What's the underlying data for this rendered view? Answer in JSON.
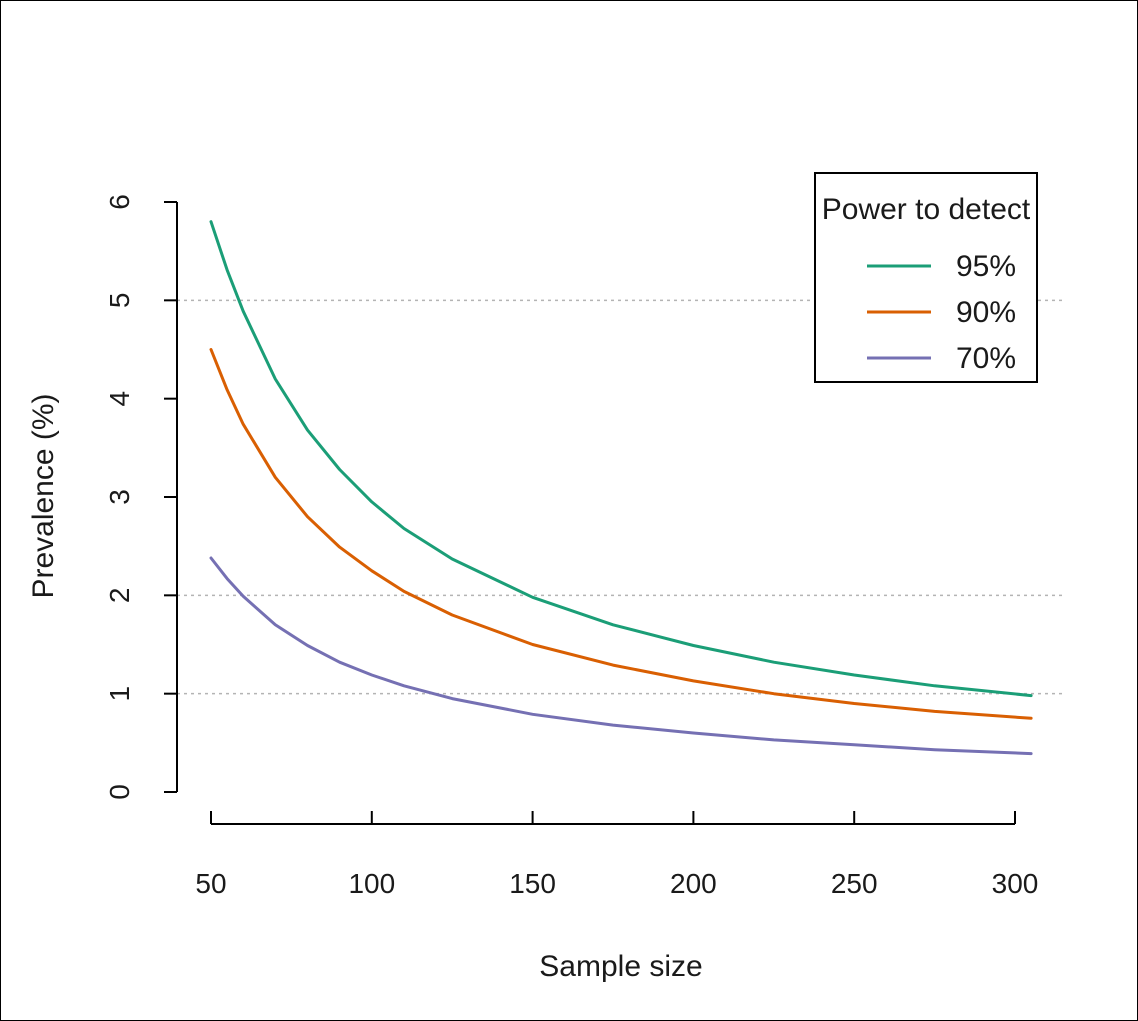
{
  "chart_data": {
    "type": "line",
    "title": "",
    "xlabel": "Sample size",
    "ylabel": "Prevalence (%)",
    "xlim": [
      50,
      305
    ],
    "ylim": [
      0,
      6
    ],
    "x_ticks": [
      50,
      100,
      150,
      200,
      250,
      300
    ],
    "y_ticks": [
      0,
      1,
      2,
      3,
      4,
      5,
      6
    ],
    "gridlines_y": [
      1,
      2,
      5
    ],
    "grid": "dashed horizontal reference lines at 1, 2 and 5",
    "legend": {
      "title": "Power to detect",
      "position": "top-right"
    },
    "series": [
      {
        "name": "95%",
        "color": "#1b9e77",
        "x": [
          50,
          55,
          60,
          70,
          80,
          90,
          100,
          110,
          125,
          150,
          175,
          200,
          225,
          250,
          275,
          305
        ],
        "values": [
          5.8,
          5.31,
          4.89,
          4.2,
          3.68,
          3.28,
          2.95,
          2.68,
          2.37,
          1.98,
          1.7,
          1.49,
          1.32,
          1.19,
          1.08,
          0.98
        ]
      },
      {
        "name": "90%",
        "color": "#d95f02",
        "x": [
          50,
          55,
          60,
          70,
          80,
          90,
          100,
          110,
          125,
          150,
          175,
          200,
          225,
          250,
          275,
          305
        ],
        "values": [
          4.5,
          4.09,
          3.74,
          3.2,
          2.8,
          2.49,
          2.25,
          2.04,
          1.8,
          1.5,
          1.29,
          1.13,
          1.0,
          0.9,
          0.82,
          0.75
        ]
      },
      {
        "name": "70%",
        "color": "#7570b3",
        "x": [
          50,
          55,
          60,
          70,
          80,
          90,
          100,
          110,
          125,
          150,
          175,
          200,
          225,
          250,
          275,
          305
        ],
        "values": [
          2.38,
          2.17,
          1.99,
          1.7,
          1.49,
          1.32,
          1.19,
          1.08,
          0.95,
          0.79,
          0.68,
          0.6,
          0.53,
          0.48,
          0.43,
          0.39
        ]
      }
    ]
  }
}
